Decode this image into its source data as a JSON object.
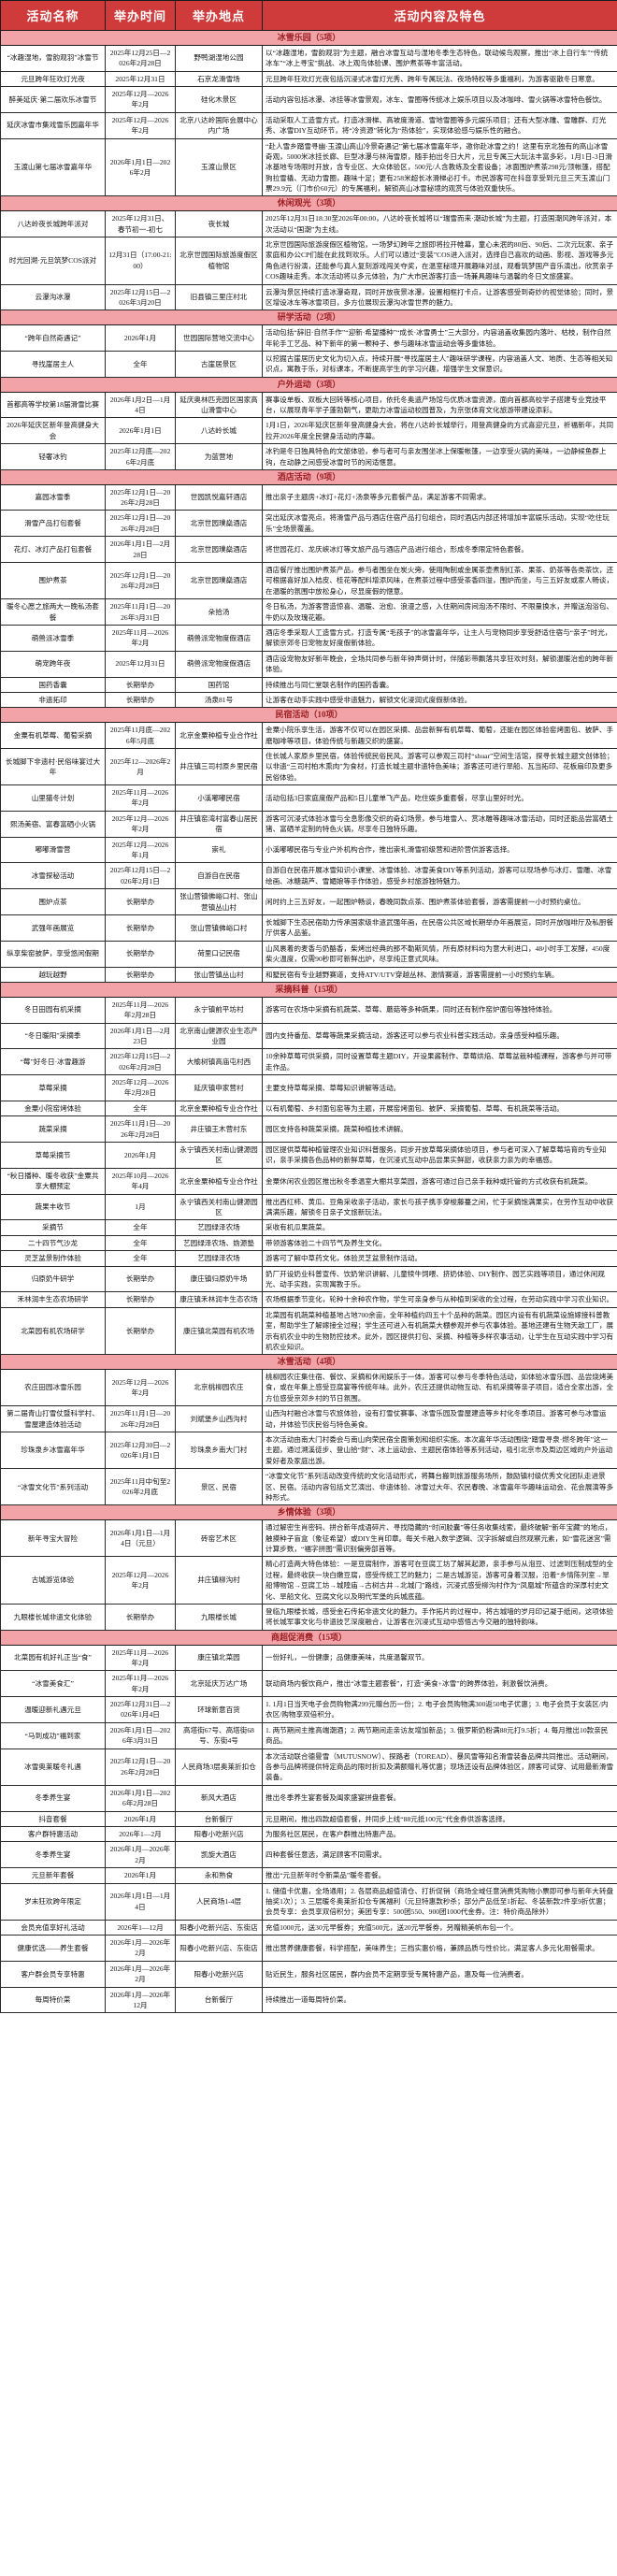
{
  "table": {
    "columns": [
      "活动名称",
      "举办时间",
      "举办地点",
      "活动内容及特色"
    ],
    "section_band_color": "#f1a3a8",
    "header_bg_color": "#cf3b3b",
    "sections": [
      {
        "title": "冰雪乐园（5项）",
        "rows": [
          [
            "“冰趣湿地，雪韵观羽”冰雪节",
            "2025年12月25日—2026年2月28日",
            "野鸭湖湿地公园",
            "以“冰趣湿地，雪韵观羽”为主题，融合冰雪互动与湿地冬季生态特色，联动候鸟观察，推出“冰上自行车”“传统冰车”“冰上寻宝”挑战、冰上观鸟体验课、围炉煮茶等丰富活动。"
          ],
          [
            "元旦跨年狂欢灯光夜",
            "2025年12月31日",
            "石京龙滑雪场",
            "元旦跨年狂欢灯光夜包括沉浸式冰雪灯光秀、跨年专属玩法、夜场特权等多重福利，为游客驱散冬日寒意。"
          ],
          [
            "醉美延庆·第二届欢乐冰雪节",
            "2025年12月—2026年2月",
            "硅化木景区",
            "活动内容包括冰瀑、冰挂等冰雪景观，冰车、雪圈等传统冰上娱乐项目以及冰咖啡、雪火锅等冰雪特色餐饮。"
          ],
          [
            "延庆冰雪市集戏雪乐园嘉年华",
            "2025年12月—2026年2月",
            "北京八达岭国际会展中心内广场",
            "活动采取人工造雪方式，打造冰滑梯、高坡度滑道、雪地雪圈等多元娱乐项目；还有大型冰雕、雪雕群、灯光秀、冰雪DIY互动环节，将“冷资源”转化为“热体验”，实现体验感与娱乐性的融合。"
          ],
          [
            "玉渡山第七届冰雪嘉年华",
            "2026年1月1日—2026年2月",
            "玉渡山景区",
            "“赴人雪乡踏雪寻幽·玉渡山高山冷景奇遇记”第七届冰雪嘉年华，邀你赴冰雪之约！这里有京北独有的高山冰雪奇观，5000米冰挂长廊、巨型冰瀑与林海雪原，随手拍出冬日大片，元旦专属三大玩法丰富多彩，1月1日-3日滑冰基地专场限时开放，含专业区、大众体验区，500元/人含教练及全套设备；冰面围炉煮茶298元/顶帐篷，搭配狗拉雪橇、无动力雪圈，趣味十足；更有258米超长冰滑梯必打卡。市民游客可在抖音享受到元旦三天玉渡山门票29.9元（门市价60元）的专属福利，解锁高山冰雪秘境的观赏与体验双重快乐。"
          ]
        ]
      },
      {
        "title": "休闲观光（3项）",
        "rows": [
          [
            "八达岭夜长城跨年派对",
            "2025年12月31日、春节初一-初七",
            "夜长城",
            "2025年12月31日18:30至2026年00:00，八达岭夜长城将以“瑞雪而来·潮动长城”为主题，打造国潮风跨年派对，本次活动以“国潮”为主线。"
          ],
          [
            "时光回溯·元旦筑梦COS派对",
            "12月31日（17:00-21:00）",
            "北京世园国际旅游度假区植物馆",
            "北京世园国际旅游度假区植物馆，一场梦幻跨年之旅即将拉开帷幕，童心未泯的80后、90后、二次元玩家、亲子家庭和办公CP们能在此找到欢乐。人们可以通过“变装”COS进入派对，选择自己喜欢的动画、影视、游戏等多元角色进行扮演，还能参与真人复刻游戏闯关夺奖，在温室秘境开展趣味对战，观看筑梦国产音乐演出，欣赏亲子COS趣味走秀。本次活动将以多元体验，为广大市民游客打造一场兼具趣味与温馨的冬日文旅盛宴。"
          ],
          [
            "云瀑沟冰瀑",
            "2025年12月15日—2026年3月20日",
            "旧县镇三里庄村北",
            "云瀑沟景区持续打造冰瀑奇观，同时开放夜景冰瀑，设置相框打卡点，让游客感受到奇妙的视觉体验；同时，景区增设冰车等冰雪项目，多方位展现云瀑沟冰雪世界的魅力。"
          ]
        ]
      },
      {
        "title": "研学活动（2项）",
        "rows": [
          [
            "“跨年自然奇遇记”",
            "2026年1月",
            "世园国际营地交流中心",
            "活动包括“辞旧·自然手作”“迎新·希望播种”“成长·冰雪勇士”三大部分，内容涵盖收集园内落叶、枯枝，制作自然年轮手工艺品、种下新年的第一颗种子、参与趣味冰雪运动会等多重体验。"
          ],
          [
            "寻找崖居主人",
            "全年",
            "古崖居景区",
            "以挖掘古崖居历史文化为切入点，持续开展“寻找崖居主人”趣味研学课程，内容涵盖人文、地质、生态等相关知识点，寓教于乐，对标课本，不断提高学生的学习兴趣，增强学生文保意识。"
          ]
        ]
      },
      {
        "title": "户外运动（3项）",
        "rows": [
          [
            "首都高等学校第18届滑雪比赛",
            "2026年1月2日—1月4日",
            "延庆奥林匹克园区国家高山滑雪中心",
            "赛事设单板、双板大回转等核心项目，依托冬奥遗产场馆与优质冰雪资源，面向首都高校学子搭建专业竞技平台，以展现青年学子蓬勃朝气，更助力冰雪运动校园普及，为京张体育文化旅游带建设添彩。"
          ],
          [
            "2026年延庆区新年登高健身大会",
            "2026年1月1日",
            "八达岭长城",
            "1月1日，2026年延庆区新年登高健身大会，将在八达岭长城举行，用登高健身的方式喜迎元旦，祈福新年，共同拉开2026年度全民健身活动的序幕。"
          ],
          [
            "轻奢冰钓",
            "2025年12月底—2026年2月底",
            "为蓝营地",
            "冰钓是冬日独具特色的文旅体验，参与者可与亲友围坐冰上保暖帐篷，一边享受火锅的美味，一边静候鱼群上钩，在动静之间感受冰雪时节的闲适惬意。"
          ]
        ]
      },
      {
        "title": "酒店活动（9项）",
        "rows": [
          [
            "嘉园冰雪季",
            "2025年12月1日—2026年2月28日",
            "世园凯悦嘉轩酒店",
            "推出亲子主题房+冰灯+花灯+汤泉等多元套餐产品，满足游客不同需求。"
          ],
          [
            "滑雪产品打包套餐",
            "2025年12月1日—2026年2月28日",
            "北京世园璞燊酒店",
            "突出延庆冰雪亮点，将滑雪产品与酒店住宿产品打包组合，同时酒店内部还将增加丰富娱乐活动，实现“吃住玩乐”全场景覆盖。"
          ],
          [
            "花灯、冰灯产品打包套餐",
            "2026年1月1日—2月28日",
            "北京世园璞燊酒店",
            "将世园花灯、龙庆峡冰灯等文旅产品与酒店产品进行组合，形成冬季限定特色套餐。"
          ],
          [
            "围炉煮茶",
            "2025年12月1日—2026年2月28日",
            "北京世园璞燊酒店",
            "酒店餐厅推出围炉煮茶产品，参与者围坐在炭火旁，使用陶制或金属茶壶煮制红茶、果茶、奶茶等各类茶饮，还可根据喜好加入桔皮、桂花等配料增添风味，在煮茶过程中感受茶香四溢，围炉而坐，与三五好友或家人畅谈，在温暖的氛围中放松身心，尽显度假的惬意。"
          ],
          [
            "暖冬心愿之旅两大一晚私汤套餐",
            "2025年11月1日—2026年3月31日",
            "朵拾汤",
            "冬日私汤，为游客营造惊喜、温暖、治愈、浪漫之感，入住期间房间泡汤不限时、不限量换水，并赠送泡浴包、牛奶以及玫瑰花瓣。"
          ],
          [
            "萌兽派冰雪季",
            "2025年11月—2026年2月",
            "萌兽派宠物度假酒店",
            "酒店冬季采取人工造雪方式，打造专属“毛孩子”的冰雪嘉年华，让主人与宠物同步享受舒适住宿与“亲子”时光，解锁京郊冬日宠物友好度假新体验。"
          ],
          [
            "萌宠跨年夜",
            "2025年12月31日",
            "萌兽派宠物度假酒店",
            "酒店设宠物友好新年晚会，全场共同参与新年钟声倒计时，伴随彩带飘落共享狂欢时刻，解锁温暖治愈的跨年新体验。"
          ],
          [
            "国药香囊",
            "长期举办",
            "国药馆",
            "持续推出与同仁堂联名制作的国药香囊。"
          ],
          [
            "非遗拓印",
            "长期举办",
            "汤泉81号",
            "让游客在动手实践中感受非遗魅力，解锁文化浸润式度假新体验。"
          ]
        ]
      },
      {
        "title": "民宿活动（10项）",
        "rows": [
          [
            "金粟有机草莓、葡萄采摘",
            "2025年11月底—2026年5月底",
            "北京金粟种植专业合作社",
            "金粟小院乐享生活，游客不仅可以在园区采摘、品尝新鲜有机草莓、葡萄，还能在园区体验窑烤面包、披萨、手磨咖啡等项目，体验传统与新趣交织的盛宴。"
          ],
          [
            "长城脚下非遗村·民俗味宴过大年",
            "2025年12—2026年2月",
            "井庄镇三司村原乡里民宿",
            "住长城人家原乡里民宿，体验传统民俗民风。游客可以参观三司村“shuar”空间生活馆，探寻长城主题文创体验；以非遗“三司村柏木熏肉”为食材，打造长城主题非遗特色美味；游客还可进行旱船、瓦当拓印、花板扇印及更多民俗体验。"
          ],
          [
            "山里猫冬计划",
            "2025年11月—2026年2月",
            "小溪嘟嘟民宿",
            "活动包括3日家庭度假产品和5日儿童单飞产品，吃住娱多重套餐，尽享山里好时光。"
          ],
          [
            "熙汤美宿、富春富硒小火锅",
            "2025年12月—2026年2月",
            "井庄镇窑湾村富春山居民宿",
            "游客可沉浸式体验冰雪与全息影像交织的奇幻场景，参与堆雪人、赏冰雕等趣味冰雪活动，同时还能品尝富硒土猪、富硒羊定制的特色火锅，尽享冬日独特乐趣。"
          ],
          [
            "嘟嘟滑雪营",
            "2025年12月—2026年1月",
            "崇礼",
            "小溪嘟嘟民宿与专业户外机构合作，推出崇礼滑雪初级营和进阶营供游客选择。"
          ],
          [
            "冰雪探秘活动",
            "2025年12月15日—2026年2月1日",
            "自游自在民宿",
            "自游自在民宿开展冰雪知识小课堂、冰雪体验、冰雪美食DIY等系列活动，游客可以现场参与冰灯、雪雕、冰雪绘画、冰糖葫芦、雪媚娘等手作体验，感受乡村旅游独特魅力。"
          ],
          [
            "围炉点茶",
            "长期举办",
            "张山营镇佛峪口村、张山营镇丛山村",
            "闲时约上三五好友，一起围炉畅谈，春晚同款点茶、围炉煮茶体验套餐，游客需提前一小时预约桌位。"
          ],
          [
            "武强年画展览",
            "长期举办",
            "张山营镇佛峪口村",
            "长城脚下生态民宿助力传承国家级非遗武强年画，在民宿公共区域长期举办年画展览，同时开放咖啡厅及私厨餐厅供客人品鉴。"
          ],
          [
            "纵享柴窑披萨，享受悠闲假期",
            "长期举办",
            "荷里口记民宿",
            "山风裹着的麦香与奶酪香，柴烤出经典的那不勒斯风情，所有原材料均为意大利进口，48小时手工发酵，450度柴火温度，仅需90秒即可新鲜出炉，尽享纯正意式风味。"
          ],
          [
            "越玩越野",
            "长期举办",
            "张山营镇丛山村",
            "和墅民宿有专业越野赛道，支持ATV/UTV穿越丛林、激情赛道，游客需提前一小时预约车辆。"
          ]
        ]
      },
      {
        "title": "采摘科普（15项）",
        "rows": [
          [
            "冬日田园有机采摘",
            "2025年11月—2026年2月28日",
            "永宁镇前平坊村",
            "游客可在农场中采摘有机蔬菜、草莓、蘑菇等多种蔬果，同时还有制作窑炉面包等独特体验。"
          ],
          [
            "“冬日暖阳”采摘季",
            "2026年1月1日—2月23日",
            "北京南山健源农业生态产业园",
            "园内支持番茄、草莓等蔬果采摘活动，游客还可以参与农业科普实践活动，亲身感受种植乐趣。"
          ],
          [
            "“莓”好冬日·冰雪趣游",
            "2025年12月15日—2026年2月28日",
            "大榆树镇高庙屯村西",
            "10余种草莓可供采摘，同时设置草莓主题DIY，开设果酱制作、草莓烘焙、草莓盆栽种植课程，游客参与并可带走作品。"
          ],
          [
            "草莓采摘",
            "2025年12月—2026年2月28日",
            "延庆镇申家营村",
            "主要支持草莓采摘、草莓知识讲解等活动。"
          ],
          [
            "金粟小院窑烤体验",
            "全年",
            "北京金粟种植专业合作社",
            "以有机葡萄、乡村面包窑等为主题，开展窑烤面包、披萨、采摘葡萄、草莓、有机蔬菜等活动。"
          ],
          [
            "蔬菜采摘",
            "2025年11月1日—2026年2月28日",
            "井庄镇王木营村东",
            "园区支持各种蔬菜采摘，蔬菜种植技术讲解。"
          ],
          [
            "草莓采摘节",
            "2026年1月",
            "永宁镇西关村南山健源园区",
            "园区提供草莓种植管理农业知识科普服务，同步开放草莓采摘体验项目，参与者可深入了解草莓培育的专业知识，亲手采摘各色品种的新鲜草莓，在沉浸式互动中品尝果实鲜甜，收获亲力亲为的幸福感。"
          ],
          [
            "“秋日播种、暖冬收获”金粟共享大棚预定",
            "2025年10月—2026年4月",
            "北京金粟种植专业合作社",
            "金粟休闲农业园区推出秋冬季温室大棚共享菜园，游客可通过自己亲手栽种或托管的方式收获有机蔬菜。"
          ],
          [
            "蔬果丰收节",
            "1月",
            "永宁镇西关村南山健源园区",
            "推出西红柿、黄瓜、豆角采收亲子活动，家长与孩子携手穿梭藤蔓之间，忙于采摘饱满果实，在劳作互动中收获满满乐趣，解锁冬日亲子文旅新玩法。"
          ],
          [
            "采摘节",
            "全年",
            "艺园绿泽农场",
            "采收有机瓜果蔬菜。"
          ],
          [
            "二十四节气沙龙",
            "全年",
            "艺园绿泽农场、妫源塾",
            "带领游客体验二十四节气及养生文化。"
          ],
          [
            "灵芝盆景制作体验",
            "全年",
            "艺园绿泽农场",
            "游客可了解中草药文化，体验灵芝盆景制作活动。"
          ],
          [
            "归原奶牛研学",
            "长期举办",
            "康庄镇归原奶牛场",
            "奶厂开设奶业科普宣传、饮奶常识讲解、儿童犊牛饲喂、挤奶体验、DIY制作、园艺实践等项目，通过休闲观光、动手实践，实现寓教于乐。"
          ],
          [
            "禾林润丰生态农场研学",
            "长期举办",
            "康庄镇禾林润丰生态农场",
            "农场根据季节变化，轮种十余种农作物，学生可亲身参与从种植到采收的全过程，在劳动实践中学习农业知识。"
          ],
          [
            "北菜园有机农场研学",
            "长期举办",
            "康庄镇北菜园有机农场",
            "北菜园有机蔬菜种植基地占地700余亩，全年种植约四五十个品种的蔬菜。园区内设有有机蔬菜设施嫁接科普教室，帮助学生了解嫁接全过程；学生还可进入有机蔬菜大棚参观并参与农事体验。基地还建有生物天敌工厂，展示有机农业中的生物防控技术。此外，园区提供打包、采摘、种植等多样农事活动，让学生在互动实践中学习有机农业知识。"
          ]
        ]
      },
      {
        "title": "冰雪活动（4项）",
        "rows": [
          [
            "农庄田园冰雪乐园",
            "2025年12月—2026年2月",
            "北京桃柳园农庄",
            "桃柳园农庄集住宿、餐饮、采摘和休闲娱乐于一体，游客可以参与冬季特色活动，如体验冰雪乐园、品尝烧烤美食，或在年集上感受豆腐宴等传统年味。此外，农庄还提供动物互动、有机采摘等亲子项目，适合全家出游，全方位感受京郊乡村的节日氛围。"
          ],
          [
            "第二届青山打雪仗暨科学村、雪屋建造体验活动",
            "2025年11月1日—2026年2月28日",
            "刘斌堡乡山西沟村",
            "山西沟村融合冰雪与农旅体验，设有打雪仗赛事、冰雪乐园及雪屋建造等乡村化冬季项目。游客可参与冰雪运动，并体验节庆民俗与特色美食。"
          ],
          [
            "珍珠泉乡冰雪嘉年华",
            "2025年12月30日—2026年1月1日",
            "珍珠泉乡南大门村",
            "本次活动由南大门村委会与南山向荣民宿全面策划和组织实施。本次嘉年华活动围绕“踏雪寻泉·燃冬跨年”这一主题，通过溯溪徒步、登山拾“财”、冰上运动会、主题民宿体验等系列活动，吸引北京市及周边区域的户外运动爱好者及家庭出游。"
          ],
          [
            "“冰雪文化节”系列活动",
            "2025年11月中旬至2026年2月底",
            "景区、民宿",
            "“冰雪文化节”系列活动改变传统的文化活动形式，将舞台搬到旅游服务场所，鼓励镇村级优秀文化团队走进景区、民宿。活动内容包括文艺演出、非遗体验、冰雪过大年、农民春晚、冰雪嘉年华趣味运动会、花会展演等多种形式。"
          ]
        ]
      },
      {
        "title": "乡情体验（3项）",
        "rows": [
          [
            "新年寻宝大冒险",
            "2026年1月1日—1月4日（元旦）",
            "砖窑艺术区",
            "通过解密生肖密码、拼合新年成语碎片、寻找隐藏的“时间胶囊”等任务收集线索，最终破解“新年宝藏”的地点，触摸种子盲盒（象征希望）或DIY生肖印章。每关卡融入数学逻辑、汉字拆解或自然观察元素，如“雪花迷宫”需计算步数，“福字拼图”需识别偏旁部首等。"
          ],
          [
            "古城游览体验",
            "2025年12月—2026年2月",
            "井庄镇柳沟村",
            "精心打造两大特色体验：一是豆腐制作，游客可在豆腐工坊了解其起源，亲手参与从泡豆、过滤到压制成型的全过程，最终收获一块白嫩豆腐，感受传统工艺的魅力；二是古城游览，游客可身着汉服，沿着“乡情陈列室→旱船博物馆→豆腐工坊→城隍庙→古树古井→北城门”路线，沉浸式感受柳沟村作为“凤凰城”所蕴含的深厚村史文化、旱船文化、豆腐文化以及明代军堡的兵城底蕴。"
          ],
          [
            "九眼楼长城非遗文化体验",
            "长期举办",
            "九眼楼长城",
            "登临九眼楼长城，感受金石传拓非遗文化的魅力。手作拓片的过程中，将古城墙的岁月印记凝于纸间，这项体验将长城军事文化与非遗技艺深度融合，让游客在沉浸式互动中感悟古今交融的独特韵味。"
          ]
        ]
      },
      {
        "title": "商超促消费（15项）",
        "rows": [
          [
            "北菜园有机好礼正当“食”",
            "2025年11月—2026年2月",
            "康庄镇北菜园",
            "一份好礼，一份健康；品健康美味，共度温馨双节。"
          ],
          [
            "“冰雪美食汇”",
            "2025年11月—2026年2月",
            "北京延庆万达广场",
            "联动商场内餐饮商户，推出“冰雪主题套餐”，打造“美食+冰雪”的跨界体验，刺激餐饮消费。"
          ],
          [
            "温暖迎新礼遇元旦",
            "2025年12月31日—2026年1月4日",
            "环球新意百货",
            "1. 1月1日当天电子会员购物满299元赠台历一份；2. 电子会员购物满300返50电子优惠；3. 电子会员于女装区/内衣区/购物享双倍积分。"
          ],
          [
            "“马到成功”福到家",
            "2026年1月1日—2026年3月31日",
            "高塔街67号、高塔街68号、东街4号",
            "1. 两节期间主推高端潮酒；2. 两节期间走亲访友增加新品；3. 俄罗斯奶粉满88元打9.5折；4. 每月推出10款亲民商品。"
          ],
          [
            "冰雪奥莱暖冬礼遇",
            "2025年12月1日—2026年2月28日",
            "人民商场3层奥莱折扣仓",
            "本次活动联合德曼雪（MUTUSNOW）、探路者（TOREAD）、暴风雪等知名滑雪装备品牌共同推出。活动期间，各参与品牌将提供特定商品的限时折扣及满额赠礼等优惠；现场还设有品牌体验区，顾客可试穿、试用最新滑雪装备。"
          ],
          [
            "冬季养生宴",
            "2026年1月1日—2026年2月28日",
            "新风大酒店",
            "推出冬季养生宴套餐及阖家盛宴拼盘套餐。"
          ],
          [
            "抖音套餐",
            "2026年1月",
            "台新餐厅",
            "元旦期间，推出四款超值套餐，并同步上线“88元抵100元”代金券供游客选择。"
          ],
          [
            "客户群特惠活动",
            "2026年1—2月",
            "阳春小吃新兴店",
            "为服务社区居民，在客户群推出特惠产品。"
          ],
          [
            "冬季养生宴",
            "2026年1月—2026年2月",
            "凯旋大酒店",
            "四种套餐任意选，满足顾客不同需求。"
          ],
          [
            "元旦新年套餐",
            "2026年1月",
            "永和熟食",
            "推出“元旦新年时令新菜品”暖冬套餐。"
          ],
          [
            "岁末狂欢跨年限定",
            "2026年1月1日—1月4日",
            "人民商场1-4层",
            "1. 储值卡优惠，全场通用；2. 各层商品超值清仓、打折促销（商场全域任意消费凭购物小票即可参与新年大转盘抽奖1次）；3. 三层暖冬奥莱折扣仓专属福利（元旦特惠款秒杀；部分产品低至1折起、冬装新款2件享9折优惠；会员专享：会员享双倍积分；美团专享：500团550、900团1000代金券。注：特价商品除外）"
          ],
          [
            "会员充值享好礼活动",
            "2026年1—12月",
            "阳春小吃新兴店、东街店",
            "充值1000元，送30元早餐券；充值500元，送20元早餐券，另赠精美帆布包一个。"
          ],
          [
            "健康优选——养生套餐",
            "2026年1月—2026年2月",
            "阳春小吃新兴店、东街店",
            "推出营养健康套餐，科学搭配，美味养生；三档实惠价格，兼顾品质与性价比，满足客人多元化用餐需求。"
          ],
          [
            "客户群会员专享特惠",
            "2026年1月—2026年2月",
            "阳春小吃新兴店",
            "贴近民生，服务社区居民，群内会员不定期享受专属特惠产品，惠及每一位消费者。"
          ],
          [
            "每周特价菜",
            "2026年1月—2026年12月",
            "台新餐厅",
            "持续推出一道每周特价菜。"
          ]
        ]
      }
    ]
  }
}
